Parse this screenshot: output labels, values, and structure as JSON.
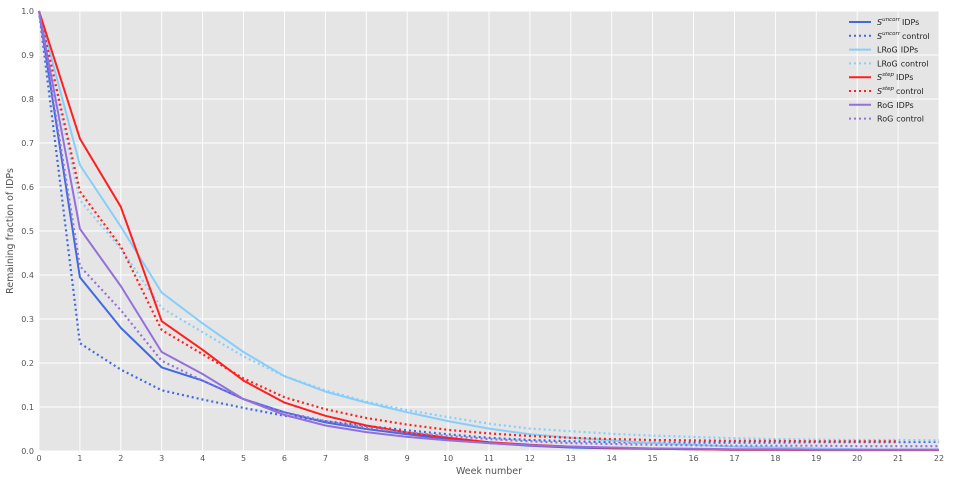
{
  "chart_data": {
    "type": "line",
    "title": "",
    "xlabel": "Week number",
    "ylabel": "Remaining fraction of IDPs",
    "xlim": [
      0,
      22
    ],
    "ylim": [
      0,
      1.0
    ],
    "x_ticks": [
      "0",
      "1",
      "2",
      "3",
      "4",
      "5",
      "6",
      "7",
      "8",
      "9",
      "10",
      "11",
      "12",
      "13",
      "14",
      "15",
      "16",
      "17",
      "18",
      "19",
      "20",
      "21",
      "22"
    ],
    "y_ticks": [
      "0.0",
      "0.1",
      "0.2",
      "0.3",
      "0.4",
      "0.5",
      "0.6",
      "0.7",
      "0.8",
      "0.9",
      "1.0"
    ],
    "grid": true,
    "background": "#e5e5e5",
    "legend_position": "top-right",
    "series": [
      {
        "name": "S^uncorr IDPs",
        "label_base": "S",
        "label_sup": "uncorr",
        "label_rest": "IDPs",
        "color": "#4169e1",
        "style": "solid",
        "x": [
          0,
          1,
          2,
          3,
          4,
          5,
          6,
          7,
          8,
          9,
          10,
          11,
          12,
          13,
          14,
          15,
          16,
          17,
          18,
          19,
          20,
          21,
          22
        ],
        "y": [
          1.0,
          0.395,
          0.28,
          0.19,
          0.16,
          0.118,
          0.088,
          0.065,
          0.05,
          0.038,
          0.027,
          0.018,
          0.012,
          0.008,
          0.006,
          0.005,
          0.004,
          0.003,
          0.003,
          0.003,
          0.003,
          0.003,
          0.003
        ]
      },
      {
        "name": "S^uncorr control",
        "label_base": "S",
        "label_sup": "uncorr",
        "label_rest": "control",
        "color": "#4169e1",
        "style": "dotted",
        "x": [
          0,
          1,
          2,
          3,
          4,
          5,
          6,
          7,
          8,
          9,
          10,
          11,
          12,
          13,
          14,
          15,
          16,
          17,
          18,
          19,
          20,
          21,
          22
        ],
        "y": [
          1.0,
          0.245,
          0.185,
          0.138,
          0.117,
          0.098,
          0.08,
          0.068,
          0.057,
          0.047,
          0.038,
          0.03,
          0.025,
          0.022,
          0.02,
          0.019,
          0.019,
          0.019,
          0.019,
          0.02,
          0.02,
          0.02,
          0.021
        ]
      },
      {
        "name": "LRoG IDPs",
        "label_base": "LRoG",
        "label_sup": "",
        "label_rest": "IDPs",
        "color": "#87cefa",
        "style": "solid",
        "x": [
          0,
          1,
          2,
          3,
          4,
          5,
          6,
          7,
          8,
          9,
          10,
          11,
          12,
          13,
          14,
          15,
          16,
          17,
          18,
          19,
          20,
          21,
          22
        ],
        "y": [
          1.0,
          0.65,
          0.51,
          0.36,
          0.29,
          0.225,
          0.17,
          0.135,
          0.11,
          0.088,
          0.068,
          0.051,
          0.038,
          0.03,
          0.024,
          0.018,
          0.014,
          0.01,
          0.008,
          0.006,
          0.004,
          0.003,
          0.002
        ]
      },
      {
        "name": "LRoG control",
        "label_base": "LRoG",
        "label_sup": "",
        "label_rest": "control",
        "color": "#87cefa",
        "style": "dotted",
        "x": [
          0,
          1,
          2,
          3,
          4,
          5,
          6,
          7,
          8,
          9,
          10,
          11,
          12,
          13,
          14,
          15,
          16,
          17,
          18,
          19,
          20,
          21,
          22
        ],
        "y": [
          1.0,
          0.57,
          0.46,
          0.325,
          0.27,
          0.215,
          0.17,
          0.138,
          0.112,
          0.093,
          0.077,
          0.062,
          0.051,
          0.045,
          0.039,
          0.035,
          0.032,
          0.029,
          0.027,
          0.026,
          0.025,
          0.025,
          0.024
        ]
      },
      {
        "name": "S^step IDPs",
        "label_base": "S",
        "label_sup": "step",
        "label_rest": "IDPs",
        "color": "#ff1f1f",
        "style": "solid",
        "x": [
          0,
          1,
          2,
          3,
          4,
          5,
          6,
          7,
          8,
          9,
          10,
          11,
          12,
          13,
          14,
          15,
          16,
          17,
          18,
          19,
          20,
          21,
          22
        ],
        "y": [
          1.0,
          0.71,
          0.555,
          0.295,
          0.23,
          0.16,
          0.11,
          0.08,
          0.058,
          0.042,
          0.03,
          0.02,
          0.014,
          0.01,
          0.007,
          0.005,
          0.004,
          0.003,
          0.003,
          0.002,
          0.002,
          0.002,
          0.002
        ]
      },
      {
        "name": "S^step control",
        "label_base": "S",
        "label_sup": "step",
        "label_rest": "control",
        "color": "#ff1f1f",
        "style": "dotted",
        "x": [
          0,
          1,
          2,
          3,
          4,
          5,
          6,
          7,
          8,
          9,
          10,
          11,
          12,
          13,
          14,
          15,
          16,
          17,
          18,
          19,
          20,
          21
        ],
        "y": [
          1.0,
          0.59,
          0.465,
          0.275,
          0.22,
          0.165,
          0.122,
          0.095,
          0.075,
          0.06,
          0.048,
          0.04,
          0.034,
          0.03,
          0.027,
          0.025,
          0.024,
          0.023,
          0.023,
          0.022,
          0.022,
          0.022
        ]
      },
      {
        "name": "RoG IDPs",
        "label_base": "RoG",
        "label_sup": "",
        "label_rest": "IDPs",
        "color": "#9370db",
        "style": "solid",
        "x": [
          0,
          1,
          2,
          3,
          4,
          5,
          6,
          7,
          8,
          9,
          10,
          11,
          12,
          13,
          14,
          15,
          16,
          17,
          18,
          19,
          20,
          21,
          22
        ],
        "y": [
          1.0,
          0.505,
          0.375,
          0.225,
          0.175,
          0.118,
          0.082,
          0.058,
          0.043,
          0.032,
          0.024,
          0.018,
          0.013,
          0.01,
          0.008,
          0.006,
          0.005,
          0.004,
          0.004,
          0.003,
          0.003,
          0.003,
          0.003
        ]
      },
      {
        "name": "RoG control",
        "label_base": "RoG",
        "label_sup": "",
        "label_rest": "control",
        "color": "#9370db",
        "style": "dotted",
        "x": [
          0,
          1,
          2,
          3,
          4,
          5,
          6,
          7,
          8,
          9,
          10,
          11,
          12,
          13,
          14,
          15,
          16,
          17,
          18,
          19,
          20,
          21,
          22
        ],
        "y": [
          1.0,
          0.42,
          0.32,
          0.205,
          0.16,
          0.118,
          0.088,
          0.068,
          0.053,
          0.042,
          0.034,
          0.027,
          0.022,
          0.018,
          0.016,
          0.014,
          0.013,
          0.012,
          0.012,
          0.012,
          0.011,
          0.011,
          0.011
        ]
      }
    ]
  }
}
